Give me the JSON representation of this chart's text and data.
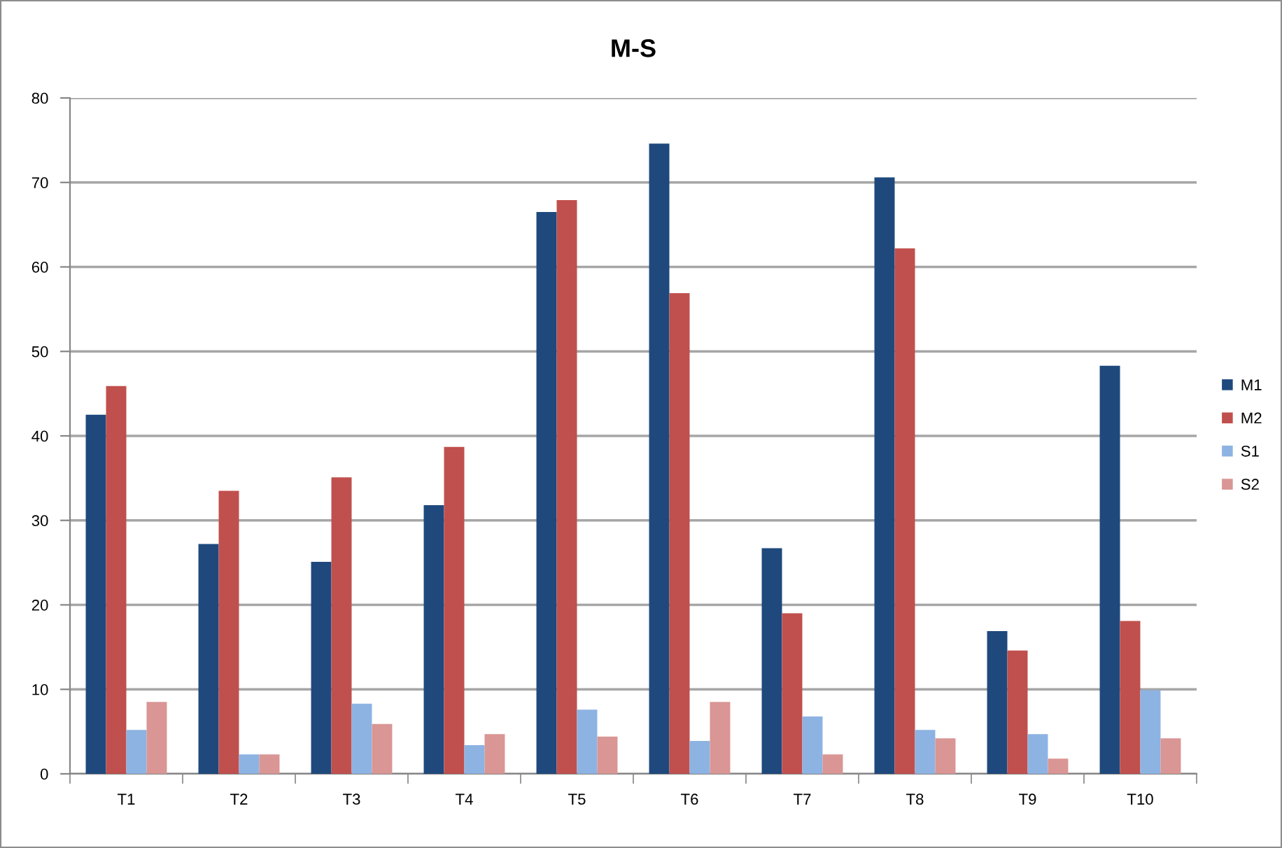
{
  "chart_data": {
    "type": "bar",
    "title": "M-S",
    "categories": [
      "T1",
      "T2",
      "T3",
      "T4",
      "T5",
      "T6",
      "T7",
      "T8",
      "T9",
      "T10"
    ],
    "series": [
      {
        "name": "M1",
        "color": "#1f497d",
        "values": [
          42.5,
          27.2,
          25.1,
          31.8,
          66.5,
          74.6,
          26.7,
          70.6,
          16.9,
          48.3
        ]
      },
      {
        "name": "M2",
        "color": "#c0504d",
        "values": [
          45.9,
          33.5,
          35.1,
          38.7,
          67.9,
          56.9,
          19.0,
          62.2,
          14.6,
          18.1
        ]
      },
      {
        "name": "S1",
        "color": "#8db3e2",
        "values": [
          5.2,
          2.3,
          8.3,
          3.4,
          7.6,
          3.9,
          6.8,
          5.2,
          4.7,
          9.9
        ]
      },
      {
        "name": "S2",
        "color": "#d99694",
        "values": [
          8.5,
          2.3,
          5.9,
          4.7,
          4.4,
          8.5,
          2.3,
          4.2,
          1.8,
          4.2
        ]
      }
    ],
    "ylim": [
      0,
      80
    ],
    "yticks": [
      0,
      10,
      20,
      30,
      40,
      50,
      60,
      70,
      80
    ],
    "grid": "y",
    "legend": "right"
  }
}
